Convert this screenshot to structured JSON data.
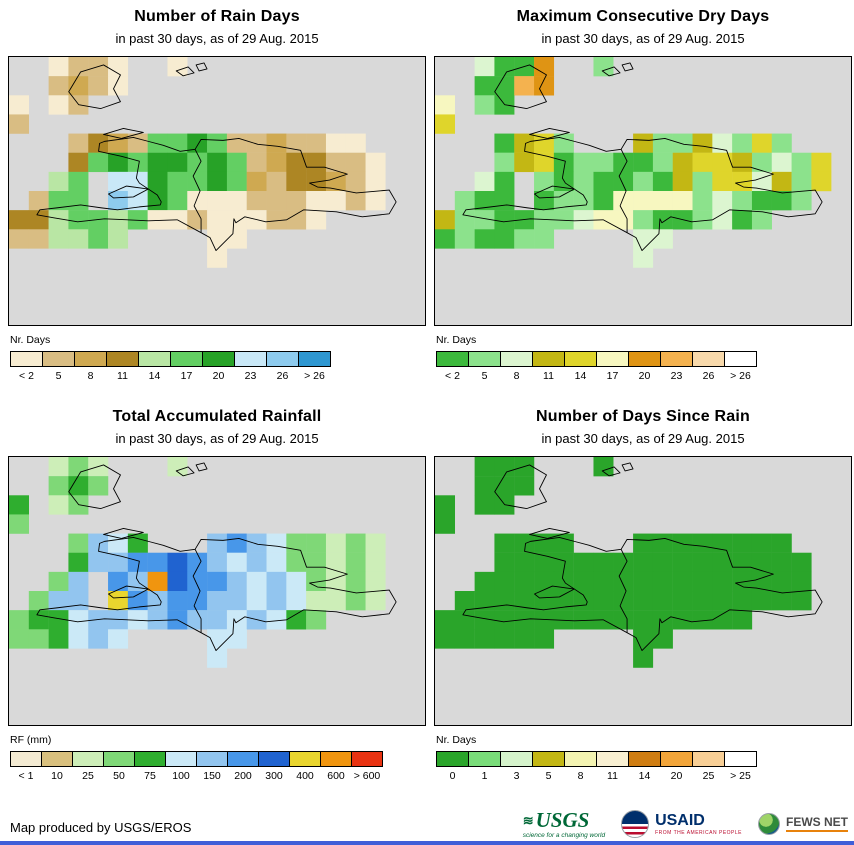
{
  "panels": [
    {
      "title": "Number of Rain Days",
      "subtitle": "in past 30 days, as of 29 Aug. 2015",
      "legend": {
        "label": "Nr. Days",
        "items": [
          {
            "color": "#f7ecd1",
            "label": "< 2"
          },
          {
            "color": "#d9bd83",
            "label": "5"
          },
          {
            "color": "#cfa951",
            "label": "8"
          },
          {
            "color": "#ad8624",
            "label": "11"
          },
          {
            "color": "#b9e6a4",
            "label": "14"
          },
          {
            "color": "#63cf63",
            "label": "17"
          },
          {
            "color": "#27a227",
            "label": "20"
          },
          {
            "color": "#c9e8f7",
            "label": "23"
          },
          {
            "color": "#8ecbee",
            "label": "26"
          },
          {
            "color": "#2e97d1",
            "label": "> 26"
          }
        ]
      },
      "grid": {
        "palette": {
          "a": "#f7ecd1",
          "b": "#d9bd83",
          "c": "#cfa951",
          "d": "#ad8624",
          "e": "#b9e6a4",
          "f": "#63cf63",
          "g": "#27a227",
          "h": "#c9e8f7",
          "i": "#8ecbee",
          "j": "#2e97d1"
        },
        "rows": [
          "..abba..a............",
          "..bcba...............",
          "a.ab.................",
          "b....................",
          "...bdcbffgfbbcbbaa...",
          "...dfgfggfgfbcddbba..",
          "..ef.hhgffgfcbddcba..",
          ".bff.ihgfaaabbbaaba..",
          "ddeffefaabaaabba.....",
          "bbeefe....aa.........",
          "..........a..........",
          ".....................",
          ".....................",
          "....................."
        ]
      }
    },
    {
      "title": "Maximum Consecutive Dry Days",
      "subtitle": "in past 30 days, as of 29 Aug. 2015",
      "legend": {
        "label": "Nr. Days",
        "items": [
          {
            "color": "#3cb93c",
            "label": "< 2"
          },
          {
            "color": "#8ce28c",
            "label": "5"
          },
          {
            "color": "#dcf5d0",
            "label": "8"
          },
          {
            "color": "#c3b714",
            "label": "11"
          },
          {
            "color": "#dfd52b",
            "label": "14"
          },
          {
            "color": "#f7f7c0",
            "label": "17"
          },
          {
            "color": "#df9414",
            "label": "20"
          },
          {
            "color": "#f4b24f",
            "label": "23"
          },
          {
            "color": "#f8d9ab",
            "label": "26"
          },
          {
            "color": "#ffffff",
            "label": "> 26"
          }
        ]
      },
      "grid": {
        "palette": {
          "a": "#3cb93c",
          "b": "#8ce28c",
          "c": "#dcf5d0",
          "d": "#c3b714",
          "e": "#dfd52b",
          "f": "#f7f7c0",
          "g": "#df9414",
          "h": "#f4b24f",
          "i": "#f8d9ab",
          "j": "#ffffff"
        },
        "rows": [
          "..caag..b............",
          "..aahg...............",
          "f.ba.................",
          "e....................",
          "...adeb...dbbdcbeb...",
          "...bdeabbaabdeedbcbe.",
          "..ca.babaabadbeecdbe.",
          ".baa.abbaffffbcbaab..",
          "dbbaabbcffbaabcab....",
          "abaabb....cc.........",
          "..........c..........",
          ".....................",
          ".....................",
          "....................."
        ]
      }
    },
    {
      "title": "Total Accumulated Rainfall",
      "subtitle": "in past 30 days, as of 29 Aug. 2015",
      "legend": {
        "label": "RF (mm)",
        "items": [
          {
            "color": "#f3ead2",
            "label": "< 1"
          },
          {
            "color": "#d9c07e",
            "label": "10"
          },
          {
            "color": "#cdeeb8",
            "label": "25"
          },
          {
            "color": "#7fd877",
            "label": "50"
          },
          {
            "color": "#2fae2f",
            "label": "75"
          },
          {
            "color": "#cbe9f7",
            "label": "100"
          },
          {
            "color": "#92c5ef",
            "label": "150"
          },
          {
            "color": "#4897e9",
            "label": "200"
          },
          {
            "color": "#2063d0",
            "label": "300"
          },
          {
            "color": "#e9d52e",
            "label": "400"
          },
          {
            "color": "#f0950f",
            "label": "600"
          },
          {
            "color": "#e93312",
            "label": "> 600"
          }
        ]
      },
      "grid": {
        "palette": {
          "a": "#f3ead2",
          "b": "#d9c07e",
          "c": "#cdeeb8",
          "d": "#7fd877",
          "e": "#2fae2f",
          "f": "#cbe9f7",
          "g": "#92c5ef",
          "h": "#4897e9",
          "i": "#2063d0",
          "j": "#e9d52e",
          "k": "#f0950f",
          "l": "#e93312"
        },
        "rows": [
          "..cdc...c............",
          "..ded................",
          "e.cd.................",
          "d....................",
          "...dgfe...ghgfddcdc..",
          "...egghhihgfgfddcdc..",
          "..dg.hgkihhgfgfdcdc..",
          ".dgg.jhghhggfgfccdc..",
          "deefggfghggfgfed.....",
          "ddefgf....ff.........",
          "..........f..........",
          ".....................",
          ".....................",
          "....................."
        ]
      }
    },
    {
      "title": "Number of Days Since Rain",
      "subtitle": "in past 30 days, as of 29 Aug. 2015",
      "legend": {
        "label": "Nr. Days",
        "items": [
          {
            "color": "#2aa52a",
            "label": "0"
          },
          {
            "color": "#79dc79",
            "label": "1"
          },
          {
            "color": "#d5f3cb",
            "label": "3"
          },
          {
            "color": "#c3b714",
            "label": "5"
          },
          {
            "color": "#f3f3b1",
            "label": "8"
          },
          {
            "color": "#f9f0d2",
            "label": "11"
          },
          {
            "color": "#cf7d12",
            "label": "14"
          },
          {
            "color": "#f2a53a",
            "label": "20"
          },
          {
            "color": "#f8cf96",
            "label": "25"
          },
          {
            "color": "#ffffff",
            "label": "> 25"
          }
        ]
      },
      "grid": {
        "palette": {
          "a": "#2aa52a",
          "b": "#79dc79",
          "c": "#d5f3cb",
          "d": "#c3b714",
          "e": "#f3f3b1",
          "f": "#f9f0d2",
          "g": "#cf7d12",
          "h": "#f2a53a",
          "i": "#f8cf96",
          "j": "#ffffff"
        },
        "rows": [
          "..aaa...a............",
          "..aaa................",
          "a.aa.................",
          "a....................",
          "...aaaa...aaaaaaaa...",
          "...aaaaaaaaaaaaaaaa..",
          "..aaaaaaaaaaaaaaaaa..",
          ".aaaaaaaaaaaaaaaaaa..",
          "aaaaaaaaaaaaaaaa.....",
          "aaaaaa....aa.........",
          "..........a..........",
          ".....................",
          ".....................",
          "....................."
        ]
      }
    }
  ],
  "footer": {
    "credit": "Map produced by USGS/EROS"
  },
  "logos": {
    "usgs": {
      "name": "USGS",
      "tagline": "science for a changing world"
    },
    "usaid": {
      "name": "USAID",
      "tagline": "FROM THE AMERICAN PEOPLE"
    },
    "fewsnet": {
      "name": "FEWS NET"
    }
  },
  "colors": {
    "map_background": "#d9d9d9",
    "map_border": "#000000",
    "bottom_bar": "#3f5ed8"
  }
}
